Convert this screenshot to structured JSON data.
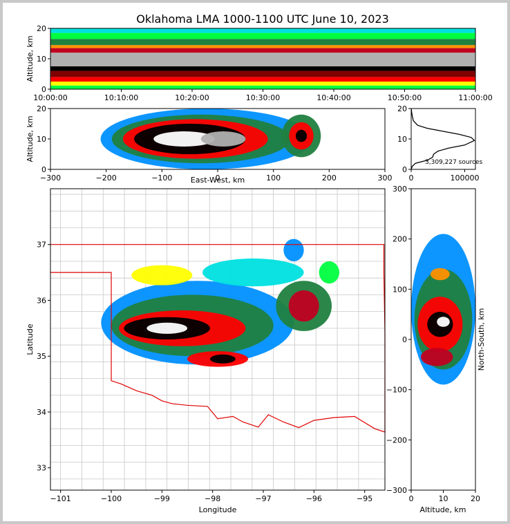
{
  "title": "Oklahoma LMA 1000-1100 UTC June 10, 2023",
  "colors": {
    "density_scale": [
      "#8a00c8",
      "#d000ff",
      "#2020ff",
      "#0090ff",
      "#00e0e0",
      "#00ff40",
      "#208040",
      "#ffff00",
      "#ff9000",
      "#ff0000",
      "#c00020",
      "#800000",
      "#000000",
      "#606060",
      "#b0b0b0",
      "#ffffff"
    ],
    "state_border": "#e00000",
    "county_lines": "#c8c8c8",
    "grid_lines": "#d8d8d8"
  },
  "chart_data": [
    {
      "panel": "time-altitude",
      "type": "heatmap",
      "xlabel": "",
      "ylabel": "Altitude, km",
      "xlim": [
        "10:00:00",
        "11:00:00"
      ],
      "ylim": [
        0,
        20
      ],
      "xticks": [
        "10:00:00",
        "10:10:00",
        "10:20:00",
        "10:30:00",
        "10:40:00",
        "10:50:00",
        "11:00:00"
      ],
      "yticks": [
        "0",
        "10",
        "20"
      ],
      "bands": [
        {
          "from": 0,
          "to": 1.2,
          "level": 5
        },
        {
          "from": 1.2,
          "to": 2.5,
          "level": 7
        },
        {
          "from": 2.5,
          "to": 4,
          "level": 9
        },
        {
          "from": 4,
          "to": 6,
          "level": 11
        },
        {
          "from": 6,
          "to": 7.5,
          "level": 12
        },
        {
          "from": 7.5,
          "to": 12,
          "level": 14
        },
        {
          "from": 12,
          "to": 13.5,
          "level": 10
        },
        {
          "from": 13.5,
          "to": 14.5,
          "level": 8
        },
        {
          "from": 14.5,
          "to": 16.5,
          "level": 6
        },
        {
          "from": 16.5,
          "to": 18.5,
          "level": 5
        },
        {
          "from": 18.5,
          "to": 20,
          "level": 4
        }
      ]
    },
    {
      "panel": "east-west-altitude",
      "type": "heatmap",
      "xlabel": "East-West, km",
      "ylabel": "Altitude, km",
      "xlim": [
        -300,
        300
      ],
      "ylim": [
        0,
        20
      ],
      "xticks": [
        "−300",
        "−200",
        "−100",
        "0",
        "100",
        "200",
        "300"
      ],
      "yticks": [
        "0",
        "10",
        "20"
      ],
      "blobs": [
        {
          "cx": -20,
          "cy": 10,
          "rx": 190,
          "ry": 10,
          "level": 3
        },
        {
          "cx": -30,
          "cy": 10,
          "rx": 160,
          "ry": 8,
          "level": 6
        },
        {
          "cx": -40,
          "cy": 10,
          "rx": 130,
          "ry": 6.5,
          "level": 9
        },
        {
          "cx": -50,
          "cy": 10,
          "rx": 100,
          "ry": 5,
          "level": 12
        },
        {
          "cx": -60,
          "cy": 10,
          "rx": 55,
          "ry": 2.5,
          "level": 15
        },
        {
          "cx": 10,
          "cy": 10,
          "rx": 40,
          "ry": 2.5,
          "level": 14
        },
        {
          "cx": 150,
          "cy": 11,
          "rx": 35,
          "ry": 7,
          "level": 6
        },
        {
          "cx": 150,
          "cy": 11,
          "rx": 22,
          "ry": 4.5,
          "level": 9
        },
        {
          "cx": 150,
          "cy": 11,
          "rx": 10,
          "ry": 2,
          "level": 12
        }
      ]
    },
    {
      "panel": "altitude-histogram",
      "type": "line",
      "xlabel": "",
      "ylabel": "",
      "xlim": [
        0,
        120000
      ],
      "ylim": [
        0,
        20
      ],
      "xticks": [
        "0",
        "100000"
      ],
      "yticks": [
        "0",
        "10",
        "20"
      ],
      "annotation": "3,309,227 sources",
      "x": [
        0,
        2000,
        8000,
        30000,
        40000,
        42000,
        50000,
        70000,
        100000,
        118000,
        112000,
        90000,
        60000,
        30000,
        12000,
        4000,
        1500,
        0
      ],
      "y": [
        0,
        1,
        2,
        3,
        4,
        5,
        6,
        7,
        8,
        9.5,
        10.5,
        11.5,
        12.5,
        13.5,
        14.5,
        16,
        18,
        20
      ]
    },
    {
      "panel": "plan-view",
      "type": "heatmap",
      "xlabel": "Longitude",
      "ylabel": "Latitude",
      "xlim": [
        -101.2,
        -94.6
      ],
      "ylim": [
        32.6,
        38
      ],
      "xticks": [
        "−101",
        "−100",
        "−99",
        "−98",
        "−97",
        "−96",
        "−95"
      ],
      "yticks": [
        "33",
        "34",
        "35",
        "36",
        "37"
      ],
      "blobs": [
        {
          "cx": -98.3,
          "cy": 35.6,
          "rx": 1.9,
          "ry": 0.75,
          "level": 3
        },
        {
          "cx": -98.4,
          "cy": 35.55,
          "rx": 1.6,
          "ry": 0.55,
          "level": 6
        },
        {
          "cx": -98.6,
          "cy": 35.5,
          "rx": 1.25,
          "ry": 0.32,
          "level": 9
        },
        {
          "cx": -98.9,
          "cy": 35.5,
          "rx": 0.85,
          "ry": 0.2,
          "level": 12
        },
        {
          "cx": -98.9,
          "cy": 35.5,
          "rx": 0.4,
          "ry": 0.1,
          "level": 15
        },
        {
          "cx": -96.2,
          "cy": 35.9,
          "rx": 0.55,
          "ry": 0.45,
          "level": 6
        },
        {
          "cx": -96.2,
          "cy": 35.9,
          "rx": 0.3,
          "ry": 0.28,
          "level": 10
        },
        {
          "cx": -97.2,
          "cy": 36.5,
          "rx": 1.0,
          "ry": 0.25,
          "level": 4
        },
        {
          "cx": -99.0,
          "cy": 36.45,
          "rx": 0.6,
          "ry": 0.18,
          "level": 7
        },
        {
          "cx": -97.9,
          "cy": 34.95,
          "rx": 0.6,
          "ry": 0.14,
          "level": 9
        },
        {
          "cx": -97.8,
          "cy": 34.95,
          "rx": 0.25,
          "ry": 0.08,
          "level": 12
        },
        {
          "cx": -96.4,
          "cy": 36.9,
          "rx": 0.2,
          "ry": 0.2,
          "level": 3
        },
        {
          "cx": -95.7,
          "cy": 36.5,
          "rx": 0.2,
          "ry": 0.2,
          "level": 5
        }
      ],
      "oklahoma_border": [
        [
          -103,
          37
        ],
        [
          -94.62,
          37
        ],
        [
          -94.62,
          36.5
        ],
        [
          -94.43,
          35.4
        ],
        [
          -94.48,
          33.64
        ],
        [
          -94.8,
          33.7
        ],
        [
          -95.2,
          33.92
        ],
        [
          -95.6,
          33.9
        ],
        [
          -96.0,
          33.85
        ],
        [
          -96.3,
          33.72
        ],
        [
          -96.6,
          33.82
        ],
        [
          -96.9,
          33.95
        ],
        [
          -97.1,
          33.73
        ],
        [
          -97.4,
          33.82
        ],
        [
          -97.6,
          33.92
        ],
        [
          -97.9,
          33.88
        ],
        [
          -98.1,
          34.1
        ],
        [
          -98.5,
          34.12
        ],
        [
          -98.8,
          34.15
        ],
        [
          -99.0,
          34.2
        ],
        [
          -99.2,
          34.3
        ],
        [
          -99.5,
          34.38
        ],
        [
          -99.8,
          34.5
        ],
        [
          -100.0,
          34.56
        ],
        [
          -100.0,
          36.5
        ],
        [
          -103,
          36.5
        ]
      ]
    },
    {
      "panel": "altitude-north-south",
      "type": "heatmap",
      "xlabel": "Altitude, km",
      "ylabel": "North-South, km",
      "xlim": [
        0,
        20
      ],
      "ylim": [
        -300,
        300
      ],
      "xticks": [
        "0",
        "10",
        "20"
      ],
      "yticks": [
        "−300",
        "−200",
        "−100",
        "0",
        "100",
        "200",
        "300"
      ],
      "blobs": [
        {
          "cx": 10,
          "cy": 60,
          "rx": 10,
          "ry": 150,
          "level": 3
        },
        {
          "cx": 10,
          "cy": 40,
          "rx": 9,
          "ry": 100,
          "level": 6
        },
        {
          "cx": 9,
          "cy": 30,
          "rx": 7,
          "ry": 55,
          "level": 9
        },
        {
          "cx": 9,
          "cy": 30,
          "rx": 4,
          "ry": 25,
          "level": 12
        },
        {
          "cx": 10,
          "cy": 35,
          "rx": 2,
          "ry": 10,
          "level": 15
        },
        {
          "cx": 8,
          "cy": -35,
          "rx": 5,
          "ry": 18,
          "level": 10
        },
        {
          "cx": 9,
          "cy": 130,
          "rx": 3,
          "ry": 12,
          "level": 8
        }
      ]
    }
  ]
}
